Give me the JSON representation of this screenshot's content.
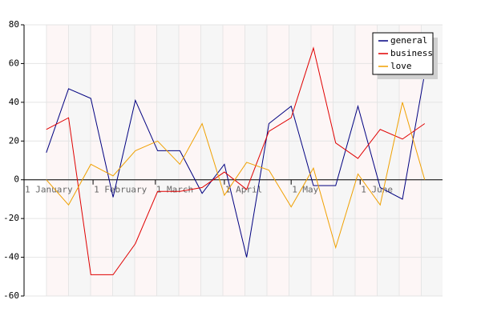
{
  "chart_data": {
    "type": "line",
    "x": [
      10,
      20,
      30,
      40,
      50,
      60,
      70,
      80,
      90,
      100,
      110,
      120,
      130,
      140,
      150,
      160,
      170,
      180
    ],
    "series": [
      {
        "name": "general",
        "color": "#000080",
        "values": [
          14,
          47,
          42,
          -9,
          41,
          15,
          15,
          -7,
          8,
          -40,
          29,
          38,
          -3,
          -3,
          38,
          -4,
          -10,
          55
        ]
      },
      {
        "name": "business",
        "color": "#e00000",
        "values": [
          26,
          32,
          -49,
          -49,
          -33,
          -6,
          -6,
          -4,
          4,
          -5,
          25,
          32,
          68,
          19,
          11,
          26,
          21,
          29
        ]
      },
      {
        "name": "love",
        "color": "#f0a000",
        "values": [
          0,
          -13,
          8,
          2,
          15,
          20,
          8,
          29,
          -8,
          9,
          5,
          -14,
          6,
          -35,
          3,
          -13,
          40,
          0
        ]
      }
    ],
    "xlim": [
      0,
      188
    ],
    "xticks": [
      {
        "value": 0,
        "label": "1 January"
      },
      {
        "value": 31,
        "label": "1 February"
      },
      {
        "value": 59,
        "label": "1 March"
      },
      {
        "value": 90,
        "label": "1 April"
      },
      {
        "value": 120,
        "label": "1 May"
      },
      {
        "value": 151,
        "label": "1 June"
      }
    ],
    "ylim": [
      -60,
      80
    ],
    "yticks": [
      -60,
      -40,
      -20,
      0,
      20,
      40,
      60,
      80
    ],
    "grid": true,
    "legend": "top-right"
  }
}
